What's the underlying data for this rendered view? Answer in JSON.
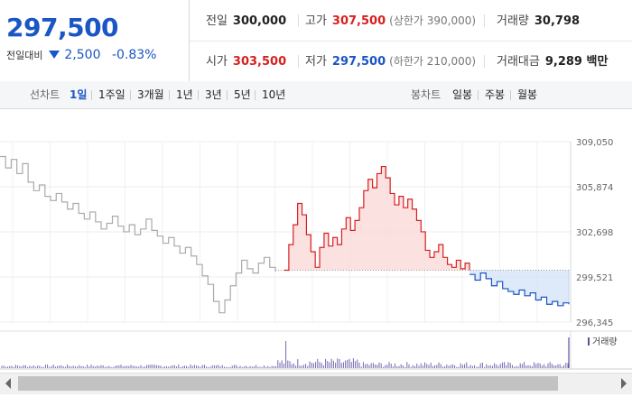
{
  "quote": {
    "price": "297,500",
    "change_label": "전일대비",
    "change": "2,500",
    "change_pct": "-0.83%"
  },
  "stats": {
    "prev_close_label": "전일",
    "prev_close": "300,000",
    "high_label": "고가",
    "high": "307,500",
    "upper_limit": "(상한가 390,000)",
    "volume_label": "거래량",
    "volume": "30,798",
    "open_label": "시가",
    "open": "303,500",
    "low_label": "저가",
    "low": "297,500",
    "lower_limit": "(하한가 210,000)",
    "amount_label": "거래대금",
    "amount": "9,289 백만"
  },
  "tabs": {
    "line_label": "선차트",
    "line_items": [
      "1일",
      "1주일",
      "3개월",
      "1년",
      "3년",
      "5년",
      "10년"
    ],
    "candle_label": "봉차트",
    "candle_items": [
      "일봉",
      "주봉",
      "월봉"
    ]
  },
  "colors": {
    "up": "#d72020",
    "down": "#1a56c4",
    "prev": "#aaaaaa",
    "volume": "#5a4fa0"
  },
  "chart_data": {
    "type": "line",
    "y_ticks": [
      "309,050",
      "305,874",
      "302,698",
      "299,521",
      "296,345"
    ],
    "ylim": [
      296345,
      309050
    ],
    "baseline": 300000,
    "volume_legend": "거래량",
    "series": [
      {
        "values": [
          308000,
          307200,
          307800,
          306800,
          307500,
          306200,
          305600,
          306000,
          305200,
          304900,
          305400,
          304800,
          304300,
          304700,
          304000,
          303600,
          304100,
          303400,
          302900,
          303300,
          303800,
          303100,
          302700,
          303200,
          302500,
          302900,
          303600,
          302800,
          302400,
          301900,
          302300,
          301700,
          301200,
          301600,
          301000,
          300400,
          299600,
          299000,
          297800,
          297000,
          297900,
          298900,
          299800,
          300700,
          300100,
          299800,
          300500,
          300900,
          300200,
          299900
        ]
      },
      {
        "values": [
          300000,
          301800,
          303200,
          304700,
          303900,
          302500,
          301300,
          300200,
          301600,
          302600,
          301700,
          302300,
          301800,
          302900,
          303700,
          302800,
          303500,
          304400,
          305600,
          306400,
          305800,
          306800,
          307300,
          306500,
          305400,
          304600,
          305200,
          304400,
          305000,
          304300,
          303500,
          302700,
          301400,
          300900,
          301300,
          301800,
          300900,
          300400,
          300200,
          300700,
          300100,
          300500,
          300000
        ]
      },
      {
        "values": [
          299700,
          299300,
          299800,
          299400,
          298900,
          299200,
          298700,
          298500,
          298300,
          298600,
          298200,
          298400,
          297900,
          298100,
          297600,
          297800,
          297500,
          297700,
          297600
        ]
      }
    ]
  }
}
